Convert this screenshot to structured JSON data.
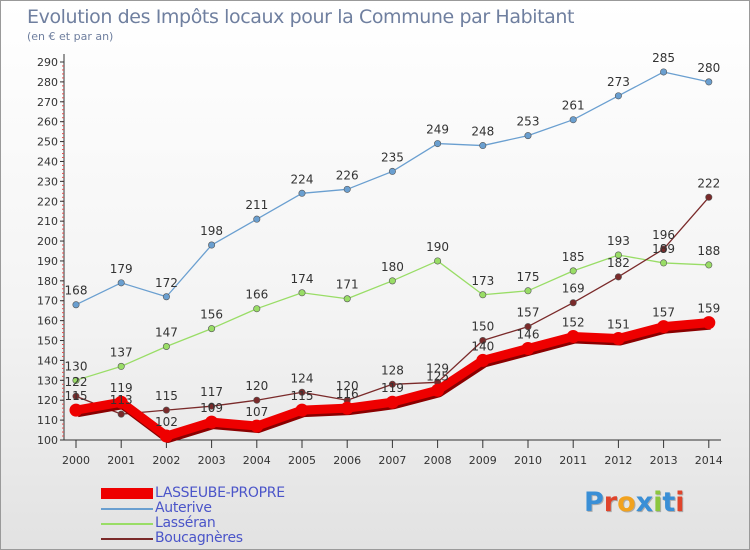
{
  "title": "Evolution des Impôts locaux pour la Commune par Habitant",
  "subtitle": "(en € et par an)",
  "logo": {
    "text": "Proxiti",
    "colors": [
      "#3a8fd6",
      "#e0442b",
      "#f2a21e",
      "#3a8fd6",
      "#8cc63e",
      "#3a8fd6",
      "#e0442b"
    ]
  },
  "chart_data": {
    "type": "line",
    "x": [
      "2000",
      "2001",
      "2002",
      "2003",
      "2004",
      "2005",
      "2006",
      "2007",
      "2008",
      "2009",
      "2010",
      "2011",
      "2012",
      "2013",
      "2014"
    ],
    "ylim": [
      100,
      290
    ],
    "yticks": [
      100,
      110,
      120,
      130,
      140,
      150,
      160,
      170,
      180,
      190,
      200,
      210,
      220,
      230,
      240,
      250,
      260,
      270,
      280,
      290
    ],
    "grid": false,
    "legend_position": "bottom-left",
    "series": [
      {
        "name": "LASSEUBE-PROPRE",
        "color": "#ee0000",
        "values": [
          115,
          119,
          102,
          109,
          107,
          115,
          116,
          119,
          125,
          140,
          146,
          152,
          151,
          157,
          159
        ],
        "labels": [
          "115",
          "119",
          "102",
          "109",
          "107",
          "115",
          "116",
          "119",
          "125",
          "140",
          "146",
          "152",
          "151",
          "157",
          "159"
        ]
      },
      {
        "name": "Auterive",
        "color": "#6a9fd0",
        "values": [
          168,
          179,
          172,
          198,
          211,
          224,
          226,
          235,
          249,
          248,
          253,
          261,
          273,
          285,
          280
        ],
        "labels": [
          "168",
          "179",
          "172",
          "198",
          "211",
          "224",
          "226",
          "235",
          "249",
          "248",
          "253",
          "261",
          "273",
          "285",
          "280"
        ]
      },
      {
        "name": "Lasséran",
        "color": "#99dd66",
        "values": [
          130,
          137,
          147,
          156,
          166,
          174,
          171,
          180,
          190,
          173,
          175,
          185,
          193,
          189,
          188
        ],
        "labels": [
          "130",
          "137",
          "147",
          "156",
          "166",
          "174",
          "171",
          "180",
          "190",
          "173",
          "175",
          "185",
          "193",
          "189",
          "188"
        ]
      },
      {
        "name": "Boucagnères",
        "color": "#7a2a2a",
        "values": [
          122,
          113,
          115,
          117,
          120,
          124,
          120,
          128,
          129,
          150,
          157,
          169,
          182,
          196,
          222
        ],
        "labels": [
          "122",
          "113",
          "115",
          "117",
          "120",
          "124",
          "120",
          "128",
          "129",
          "150",
          "157",
          "169",
          "182",
          "196",
          "222"
        ]
      }
    ]
  }
}
